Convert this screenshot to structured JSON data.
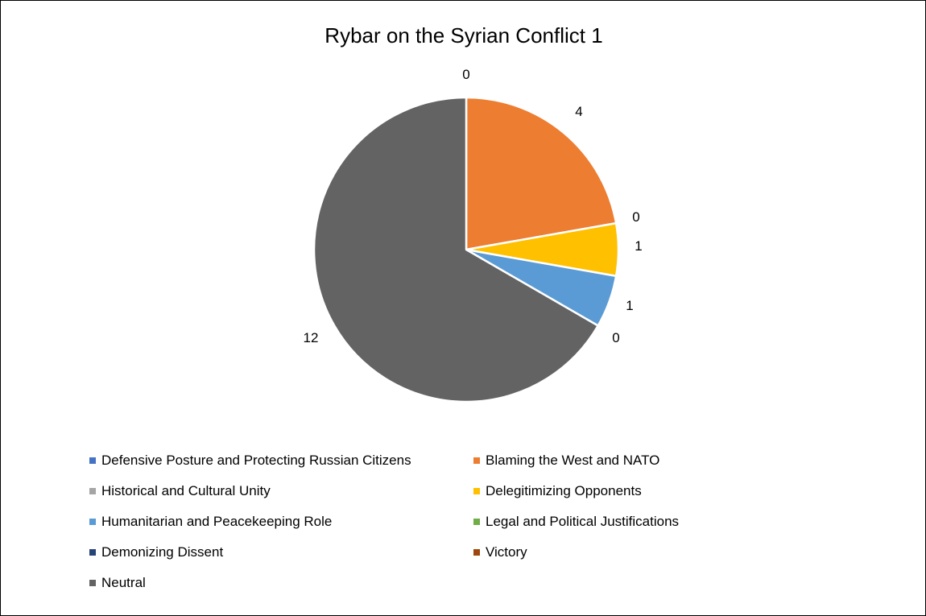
{
  "chart_data": {
    "type": "pie",
    "title": "Rybar on the Syrian Conflict 1",
    "categories": [
      "Defensive Posture and Protecting Russian Citizens",
      "Blaming the West and NATO",
      "Historical and Cultural Unity",
      "Delegitimizing Opponents",
      "Humanitarian and Peacekeeping Role",
      "Legal and Political Justifications",
      "Demonizing Dissent",
      "Victory",
      "Neutral"
    ],
    "values": [
      0,
      4,
      0,
      1,
      1,
      0,
      0,
      0,
      12
    ],
    "data_labels": [
      "0",
      "4",
      "0",
      "1",
      "1",
      "0",
      "",
      "",
      "12"
    ],
    "colors": [
      "#4472C4",
      "#ED7D31",
      "#A5A5A5",
      "#FFC000",
      "#5B9BD5",
      "#70AD47",
      "#264478",
      "#9E480E",
      "#636363"
    ],
    "legend_position": "bottom"
  }
}
